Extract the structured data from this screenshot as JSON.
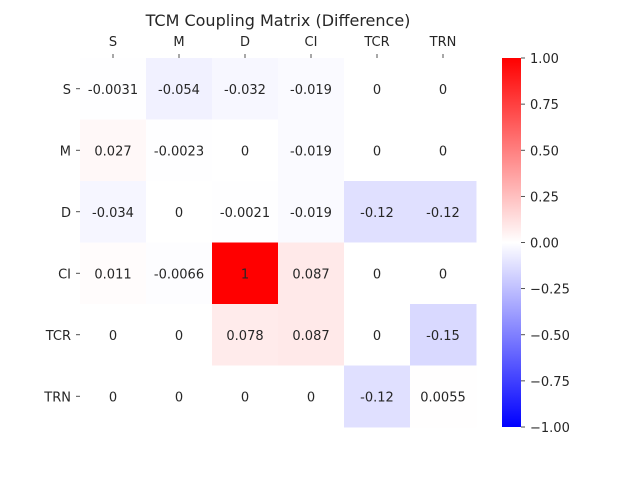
{
  "chart_data": {
    "type": "heatmap",
    "title": "TCM Coupling Matrix (Difference)",
    "x_categories": [
      "S",
      "M",
      "D",
      "CI",
      "TCR",
      "TRN"
    ],
    "y_categories": [
      "S",
      "M",
      "D",
      "CI",
      "TCR",
      "TRN"
    ],
    "values": [
      [
        -0.0031,
        -0.054,
        -0.032,
        -0.019,
        0,
        0
      ],
      [
        0.027,
        -0.0023,
        0,
        -0.019,
        0,
        0
      ],
      [
        -0.034,
        0,
        -0.0021,
        -0.019,
        -0.12,
        -0.12
      ],
      [
        0.011,
        -0.0066,
        1,
        0.087,
        0,
        0
      ],
      [
        0,
        0,
        0.078,
        0.087,
        0,
        -0.15
      ],
      [
        0,
        0,
        0,
        0,
        -0.12,
        0.0055
      ]
    ],
    "x_axis_position": "top",
    "colormap": "bwr",
    "colors": {
      "min": "#0000ff",
      "mid": "#ffffff",
      "max": "#ff0000"
    },
    "vmin": -1,
    "vmax": 1,
    "colorbar_ticks": [
      1.0,
      0.75,
      0.5,
      0.25,
      0.0,
      -0.25,
      -0.5,
      -0.75,
      -1.0
    ],
    "colorbar_tick_labels": [
      "1.00",
      "0.75",
      "0.50",
      "0.25",
      "0.00",
      "−0.25",
      "−0.50",
      "−0.75",
      "−1.00"
    ]
  }
}
